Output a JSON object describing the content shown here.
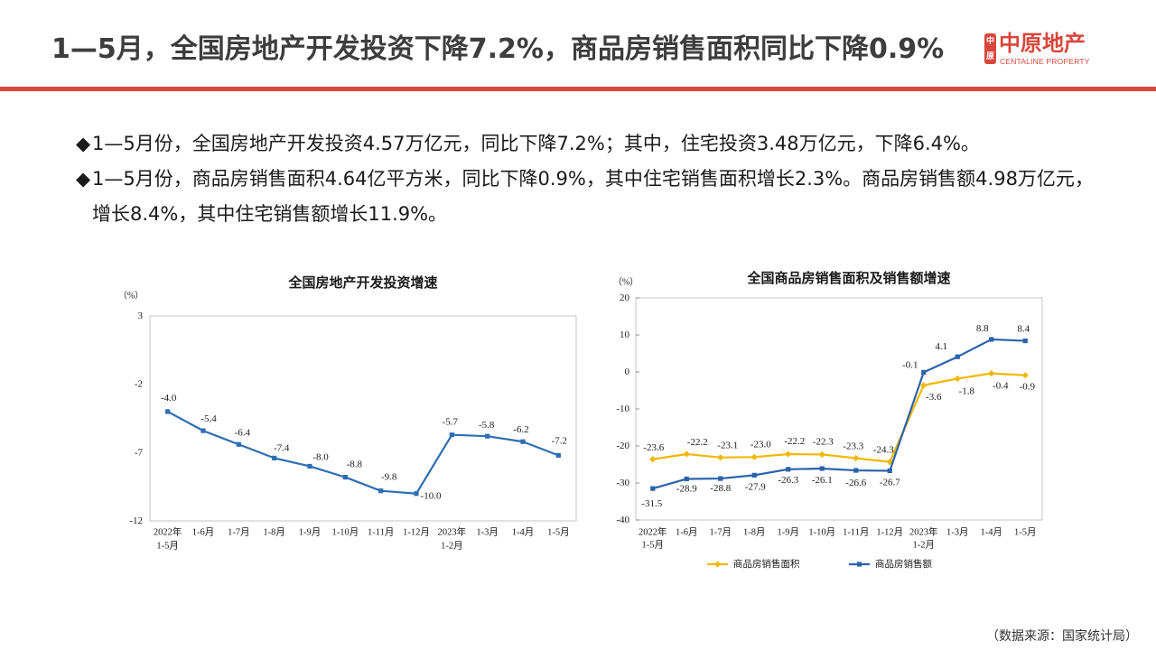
{
  "slide": {
    "title": "1—5月，全国房地产开发投资下降7.2%，商品房销售面积同比下降0.9%",
    "source_note": "（数据来源：国家统计局）",
    "accent_color": "#d9463b"
  },
  "logo": {
    "seal_top": "中",
    "seal_bottom": "原",
    "name": "中原地产",
    "english": "CENTALINE PROPERTY",
    "color": "#d9463b"
  },
  "bullets": [
    {
      "marker": "◆",
      "lines": [
        "1—5月份，全国房地产开发投资4.57万亿元，同比下降7.2%；其中，住宅投资3.48万亿元，下降6.4%。"
      ]
    },
    {
      "marker": "◆",
      "lines": [
        "1—5月份，商品房销售面积4.64亿平方米，同比下降0.9%，其中住宅销售面积增长2.3%。商品房销售额4.98万亿元，",
        "增长8.4%，其中住宅销售额增长11.9%。"
      ]
    }
  ],
  "chart_data": [
    {
      "type": "line",
      "title": "全国房地产开发投资增速",
      "ylabel": "（%）",
      "categories": [
        [
          "2022年",
          "1-5月"
        ],
        [
          "1-6月"
        ],
        [
          "1-7月"
        ],
        [
          "1-8月"
        ],
        [
          "1-9月"
        ],
        [
          "1-10月"
        ],
        [
          "1-11月"
        ],
        [
          "1-12月"
        ],
        [
          "2023年",
          "1-2月"
        ],
        [
          "1-3月"
        ],
        [
          "1-4月"
        ],
        [
          "1-5月"
        ]
      ],
      "series": [
        {
          "values": [
            -4.0,
            -5.4,
            -6.4,
            -7.4,
            -8.0,
            -8.8,
            -9.8,
            -10.0,
            -5.7,
            -5.8,
            -6.2,
            -7.2
          ],
          "color": "#2e6db4",
          "marker": "square"
        }
      ],
      "ylim": [
        -12,
        3
      ],
      "yticks": [
        3,
        -2,
        -7,
        -12
      ],
      "grid": false,
      "legend": "none"
    },
    {
      "type": "line",
      "title": "全国商品房销售面积及销售额增速",
      "ylabel": "（%）",
      "categories": [
        [
          "2022年",
          "1-5月"
        ],
        [
          "1-6月"
        ],
        [
          "1-7月"
        ],
        [
          "1-8月"
        ],
        [
          "1-9月"
        ],
        [
          "1-10月"
        ],
        [
          "1-11月"
        ],
        [
          "1-12月"
        ],
        [
          "2023年",
          "1-2月"
        ],
        [
          "1-3月"
        ],
        [
          "1-4月"
        ],
        [
          "1-5月"
        ]
      ],
      "series": [
        {
          "name": "商品房销售面积",
          "values": [
            -23.6,
            -22.2,
            -23.1,
            -23.0,
            -22.2,
            -22.3,
            -23.3,
            -24.3,
            -3.6,
            -1.8,
            -0.4,
            -0.9
          ],
          "color": "#f2b705",
          "marker": "diamond"
        },
        {
          "name": "商品房销售额",
          "values": [
            -31.5,
            -28.9,
            -28.8,
            -27.9,
            -26.3,
            -26.1,
            -26.6,
            -26.7,
            -0.1,
            4.1,
            8.8,
            8.4
          ],
          "color": "#2a62ab",
          "marker": "square"
        }
      ],
      "ylim": [
        -40,
        20
      ],
      "yticks": [
        20,
        10,
        0,
        -10,
        -20,
        -30,
        -40
      ],
      "grid": false,
      "legend": "bottom"
    }
  ]
}
